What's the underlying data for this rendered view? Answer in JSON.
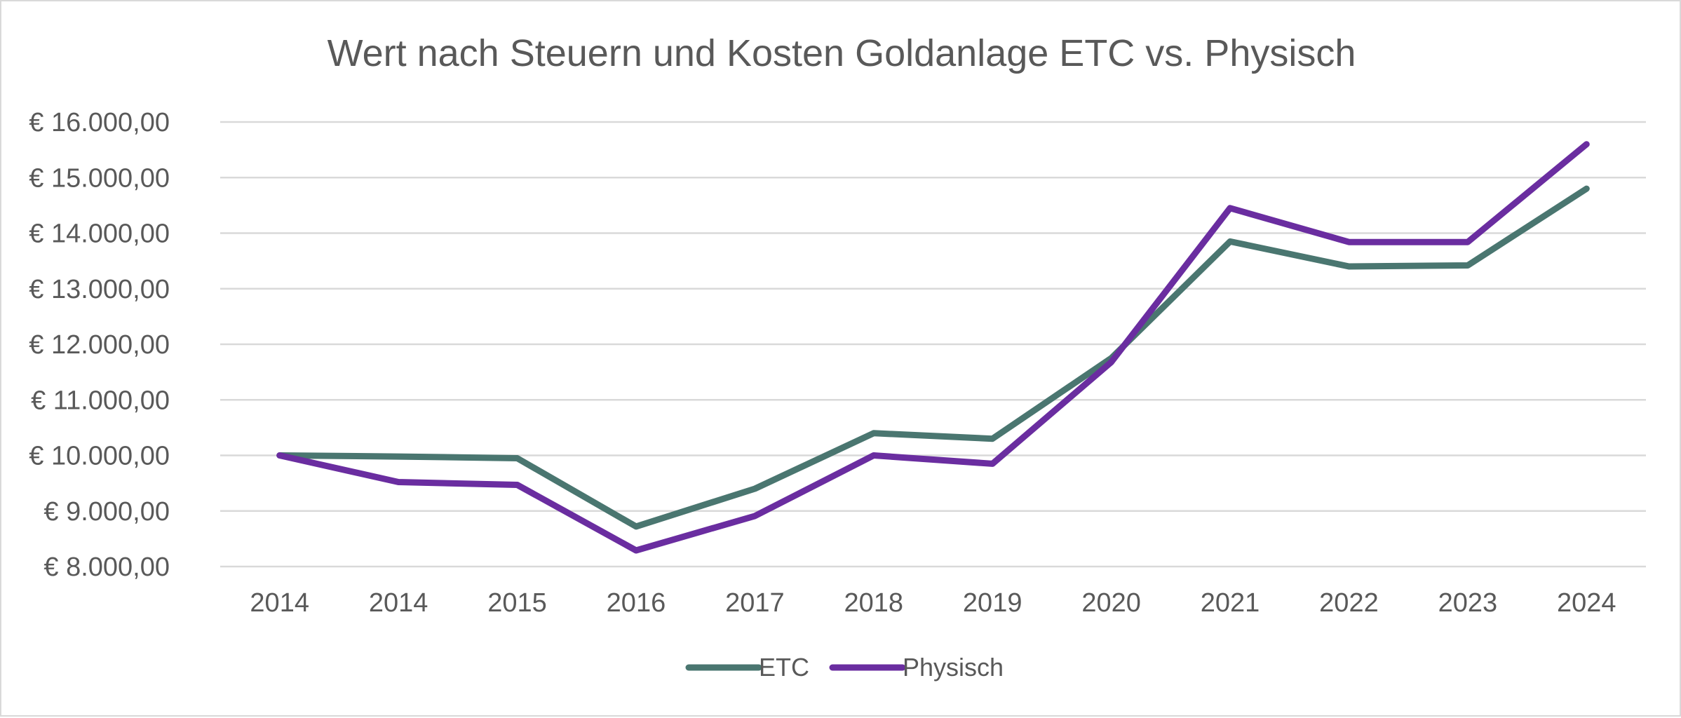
{
  "chart_data": {
    "type": "line",
    "title": "Wert nach Steuern und Kosten Goldanlage ETC vs. Physisch",
    "xlabel": "",
    "ylabel": "",
    "categories": [
      "2014",
      "2014",
      "2015",
      "2016",
      "2017",
      "2018",
      "2019",
      "2020",
      "2021",
      "2022",
      "2023",
      "2024"
    ],
    "ylim": [
      8000,
      16000
    ],
    "yticks": [
      8000,
      9000,
      10000,
      11000,
      12000,
      13000,
      14000,
      15000,
      16000
    ],
    "ytick_labels": [
      "€ 8.000,00",
      "€ 9.000,00",
      "€ 10.000,00",
      "€ 11.000,00",
      "€ 12.000,00",
      "€ 13.000,00",
      "€ 14.000,00",
      "€ 15.000,00",
      "€ 16.000,00"
    ],
    "grid": true,
    "legend_position": "bottom",
    "series": [
      {
        "name": "ETC",
        "color": "#4A7670",
        "values": [
          10000,
          9980,
          9950,
          8720,
          9400,
          10400,
          10300,
          11750,
          13850,
          13400,
          13420,
          14800
        ]
      },
      {
        "name": "Physisch",
        "color": "#6A2DA0",
        "values": [
          10000,
          9520,
          9470,
          8290,
          8910,
          10000,
          9850,
          11680,
          14450,
          13840,
          13840,
          15600
        ]
      }
    ]
  }
}
